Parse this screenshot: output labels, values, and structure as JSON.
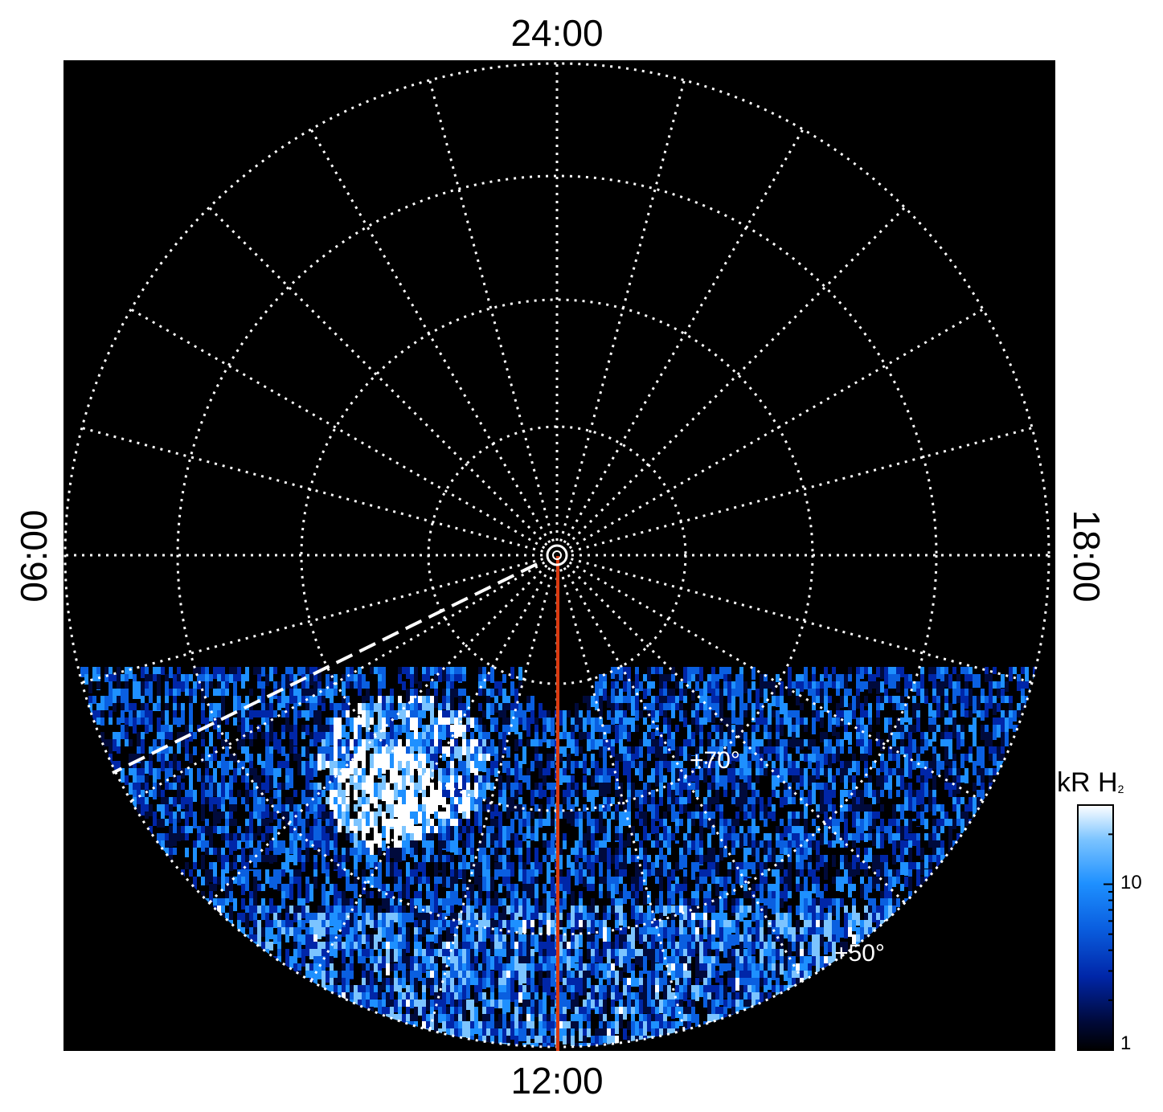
{
  "chart_data": {
    "type": "heatmap",
    "projection": "polar",
    "local_time_labels": {
      "top": "24:00",
      "bottom": "12:00",
      "left": "06:00",
      "right": "18:00"
    },
    "latitude_labels": [
      "+70°",
      "+50°"
    ],
    "colorbar": {
      "title": "kR H",
      "title_subscript": "2",
      "scale": "log",
      "range": [
        1,
        30
      ],
      "ticks": [
        "10",
        "1"
      ],
      "colors": [
        "#000000",
        "#000a3c",
        "#0026a8",
        "#0a5fe0",
        "#1e90ff",
        "#7cc4ff",
        "#ffffff"
      ]
    },
    "grid": true,
    "colors": {
      "background": "#000000",
      "grid": "#ffffff",
      "meridian_line": "#d93a10"
    }
  }
}
